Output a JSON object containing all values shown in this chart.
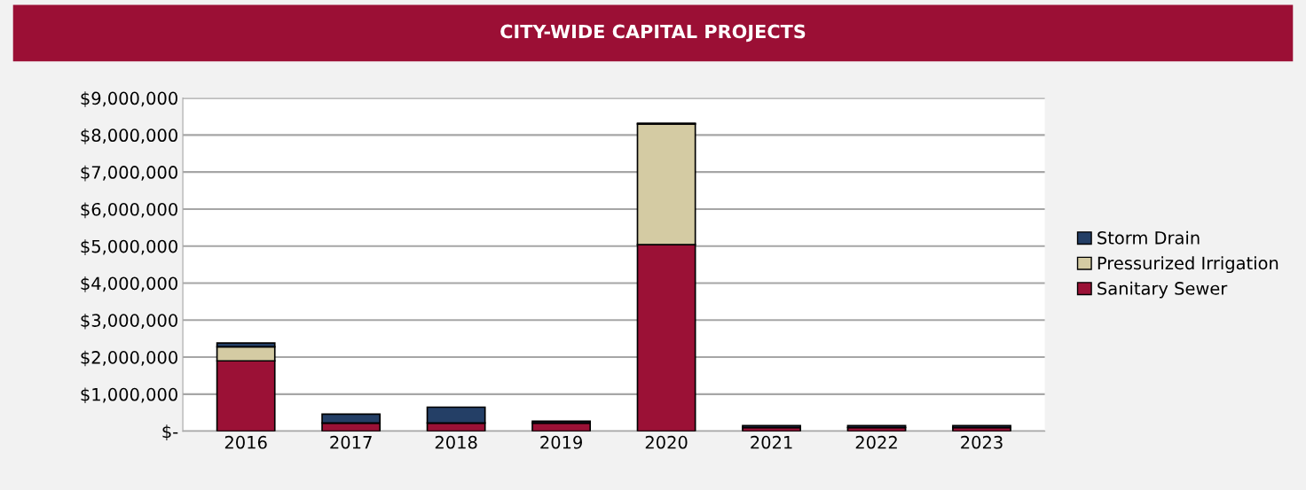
{
  "chart_data": {
    "type": "bar",
    "title": "CITY-WIDE CAPITAL PROJECTS",
    "stacked": true,
    "categories": [
      "2016",
      "2017",
      "2018",
      "2019",
      "2020",
      "2021",
      "2022",
      "2023"
    ],
    "series": [
      {
        "name": "Sanitary Sewer",
        "color": "#9b1136",
        "values": [
          1900000,
          220000,
          220000,
          220000,
          5040000,
          100000,
          100000,
          100000
        ]
      },
      {
        "name": "Pressurized Irrigation",
        "color": "#d4cba3",
        "values": [
          380000,
          0,
          0,
          0,
          3260000,
          0,
          0,
          0
        ]
      },
      {
        "name": "Storm Drain",
        "color": "#243f66",
        "values": [
          100000,
          240000,
          430000,
          50000,
          20000,
          50000,
          50000,
          50000
        ]
      }
    ],
    "ylim": [
      0,
      9000000
    ],
    "yticks": [
      {
        "value": 0,
        "label": "$-"
      },
      {
        "value": 1000000,
        "label": "$1,000,000"
      },
      {
        "value": 2000000,
        "label": "$2,000,000"
      },
      {
        "value": 3000000,
        "label": "$3,000,000"
      },
      {
        "value": 4000000,
        "label": "$4,000,000"
      },
      {
        "value": 5000000,
        "label": "$5,000,000"
      },
      {
        "value": 6000000,
        "label": "$6,000,000"
      },
      {
        "value": 7000000,
        "label": "$7,000,000"
      },
      {
        "value": 8000000,
        "label": "$8,000,000"
      },
      {
        "value": 9000000,
        "label": "$9,000,000"
      }
    ],
    "grid": "y",
    "legend": "right"
  }
}
